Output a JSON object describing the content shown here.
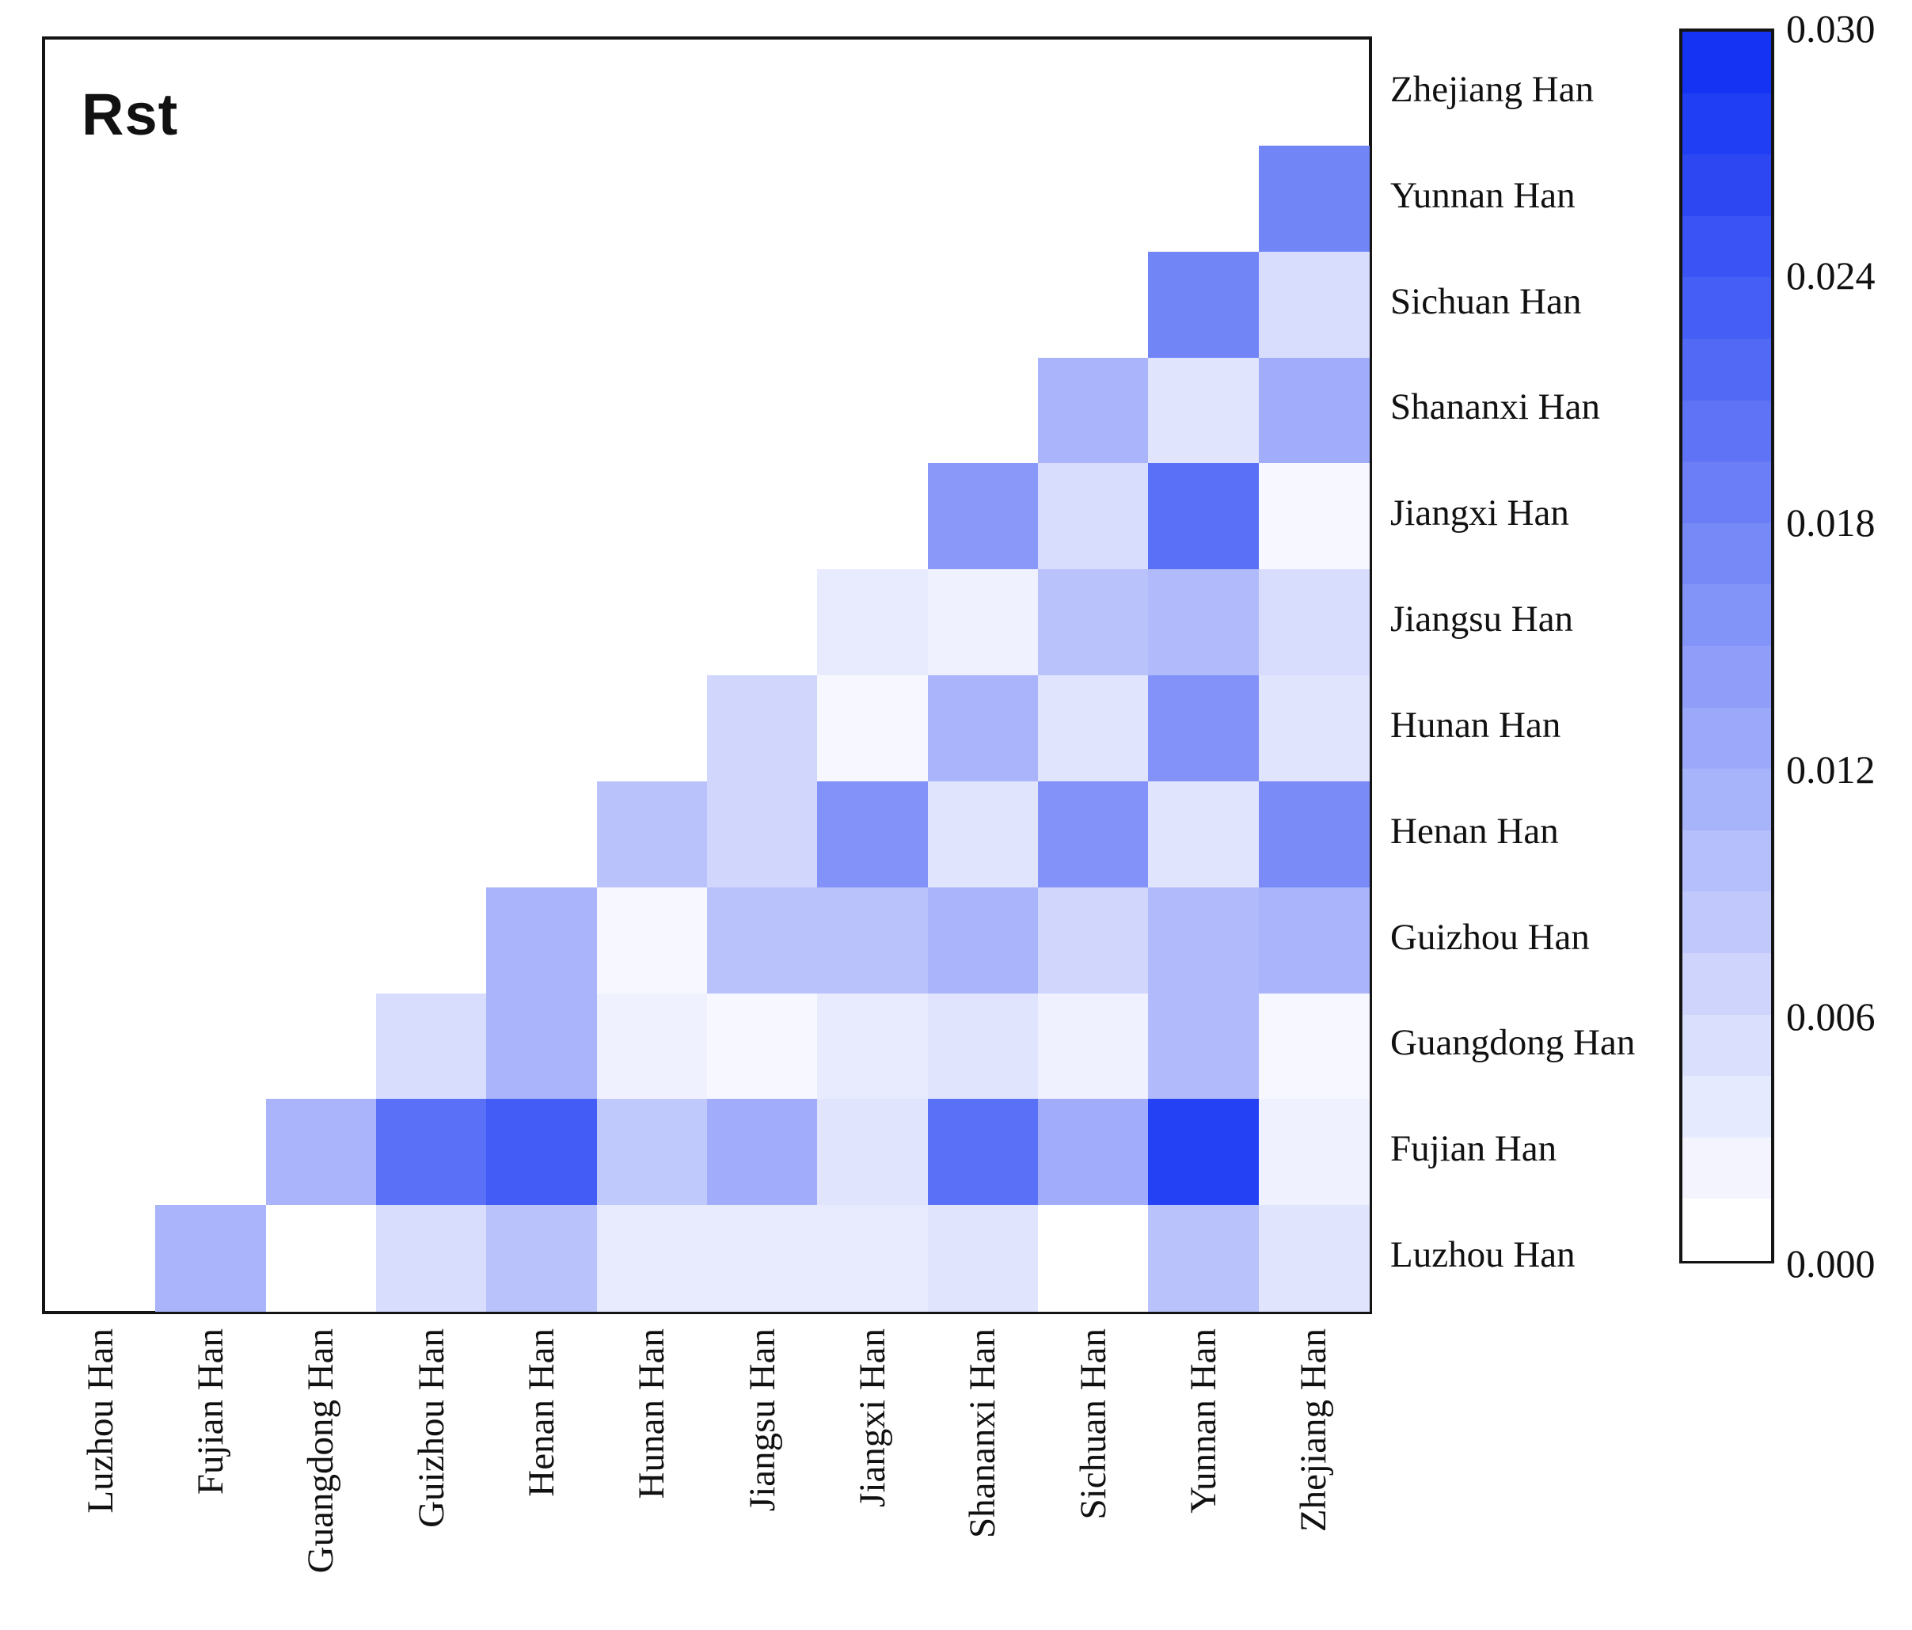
{
  "page": {
    "background": "#ffffff",
    "frame_color": "#141414",
    "text_color": "#111111"
  },
  "chart_data": {
    "type": "heatmap",
    "title": "Rst",
    "shape": "lower-triangle-pairwise-matrix",
    "legend_position": "right",
    "columns": [
      "Luzhou Han",
      "Fujian Han",
      "Guangdong Han",
      "Guizhou Han",
      "Henan Han",
      "Hunan Han",
      "Jiangsu Han",
      "Jiangxi Han",
      "Shananxi Han",
      "Sichuan Han",
      "Yunnan Han",
      "Zhejiang Han"
    ],
    "rows": [
      {
        "name": "Zhejiang Han",
        "values": [
          null,
          null,
          null,
          null,
          null,
          null,
          null,
          null,
          null,
          null,
          null,
          null
        ]
      },
      {
        "name": "Yunnan Han",
        "values": [
          null,
          null,
          null,
          null,
          null,
          null,
          null,
          null,
          null,
          null,
          null,
          0.018
        ]
      },
      {
        "name": "Sichuan Han",
        "values": [
          null,
          null,
          null,
          null,
          null,
          null,
          null,
          null,
          null,
          null,
          0.018,
          0.005
        ]
      },
      {
        "name": "Shananxi Han",
        "values": [
          null,
          null,
          null,
          null,
          null,
          null,
          null,
          null,
          null,
          0.011,
          0.004,
          0.012
        ]
      },
      {
        "name": "Jiangxi Han",
        "values": [
          null,
          null,
          null,
          null,
          null,
          null,
          null,
          null,
          0.015,
          0.005,
          0.021,
          0.001
        ]
      },
      {
        "name": "Jiangsu Han",
        "values": [
          null,
          null,
          null,
          null,
          null,
          null,
          null,
          0.003,
          0.002,
          0.009,
          0.01,
          0.005
        ]
      },
      {
        "name": "Hunan Han",
        "values": [
          null,
          null,
          null,
          null,
          null,
          null,
          0.006,
          0.001,
          0.011,
          0.004,
          0.016,
          0.004
        ]
      },
      {
        "name": "Henan Han",
        "values": [
          null,
          null,
          null,
          null,
          null,
          0.009,
          0.006,
          0.016,
          0.004,
          0.016,
          0.004,
          0.017
        ]
      },
      {
        "name": "Guizhou Han",
        "values": [
          null,
          null,
          null,
          null,
          0.011,
          0.001,
          0.009,
          0.009,
          0.011,
          0.006,
          0.01,
          0.011
        ]
      },
      {
        "name": "Guangdong Han",
        "values": [
          null,
          null,
          null,
          0.005,
          0.011,
          0.002,
          0.001,
          0.003,
          0.004,
          0.002,
          0.01,
          0.001
        ]
      },
      {
        "name": "Fujian Han",
        "values": [
          null,
          null,
          0.011,
          0.021,
          0.024,
          0.008,
          0.012,
          0.004,
          0.021,
          0.012,
          0.028,
          0.002
        ]
      },
      {
        "name": "Luzhou Han",
        "values": [
          null,
          0.011,
          0.0,
          0.005,
          0.009,
          0.003,
          0.003,
          0.003,
          0.004,
          0.0,
          0.009,
          0.004
        ]
      }
    ],
    "colorbar": {
      "min": 0.0,
      "max": 0.03,
      "ticks": [
        "0.030",
        "0.024",
        "0.018",
        "0.012",
        "0.006",
        "0.000"
      ],
      "steps": 20,
      "min_color": "#ffffff",
      "max_color": "#1433f2"
    }
  }
}
